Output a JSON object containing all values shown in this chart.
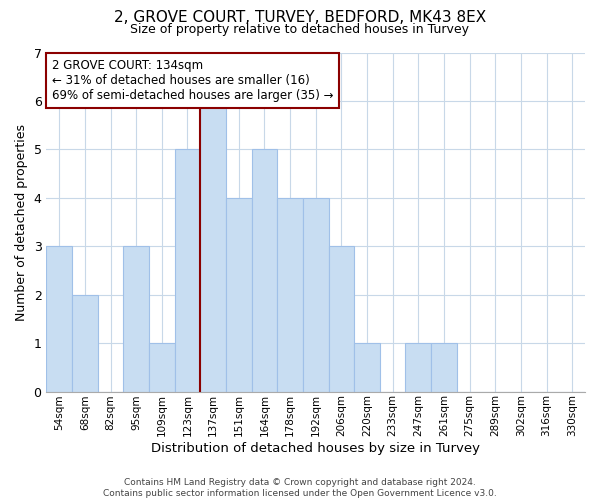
{
  "title": "2, GROVE COURT, TURVEY, BEDFORD, MK43 8EX",
  "subtitle": "Size of property relative to detached houses in Turvey",
  "xlabel": "Distribution of detached houses by size in Turvey",
  "ylabel": "Number of detached properties",
  "bar_labels": [
    "54sqm",
    "68sqm",
    "82sqm",
    "95sqm",
    "109sqm",
    "123sqm",
    "137sqm",
    "151sqm",
    "164sqm",
    "178sqm",
    "192sqm",
    "206sqm",
    "220sqm",
    "233sqm",
    "247sqm",
    "261sqm",
    "275sqm",
    "289sqm",
    "302sqm",
    "316sqm",
    "330sqm"
  ],
  "bar_heights": [
    3,
    2,
    0,
    3,
    1,
    5,
    6,
    4,
    5,
    4,
    4,
    3,
    1,
    0,
    1,
    1,
    0,
    0,
    0,
    0,
    0
  ],
  "highlight_index": 6,
  "bar_color": "#c8ddf2",
  "bar_edge_color": "#a0c0e8",
  "highlight_line_color": "#8b0000",
  "annotation_text": "2 GROVE COURT: 134sqm\n← 31% of detached houses are smaller (16)\n69% of semi-detached houses are larger (35) →",
  "annotation_box_color": "#ffffff",
  "annotation_box_edge_color": "#8b0000",
  "ylim": [
    0,
    7
  ],
  "yticks": [
    0,
    1,
    2,
    3,
    4,
    5,
    6,
    7
  ],
  "footer_line1": "Contains HM Land Registry data © Crown copyright and database right 2024.",
  "footer_line2": "Contains public sector information licensed under the Open Government Licence v3.0.",
  "background_color": "#ffffff",
  "grid_color": "#c8d8e8"
}
